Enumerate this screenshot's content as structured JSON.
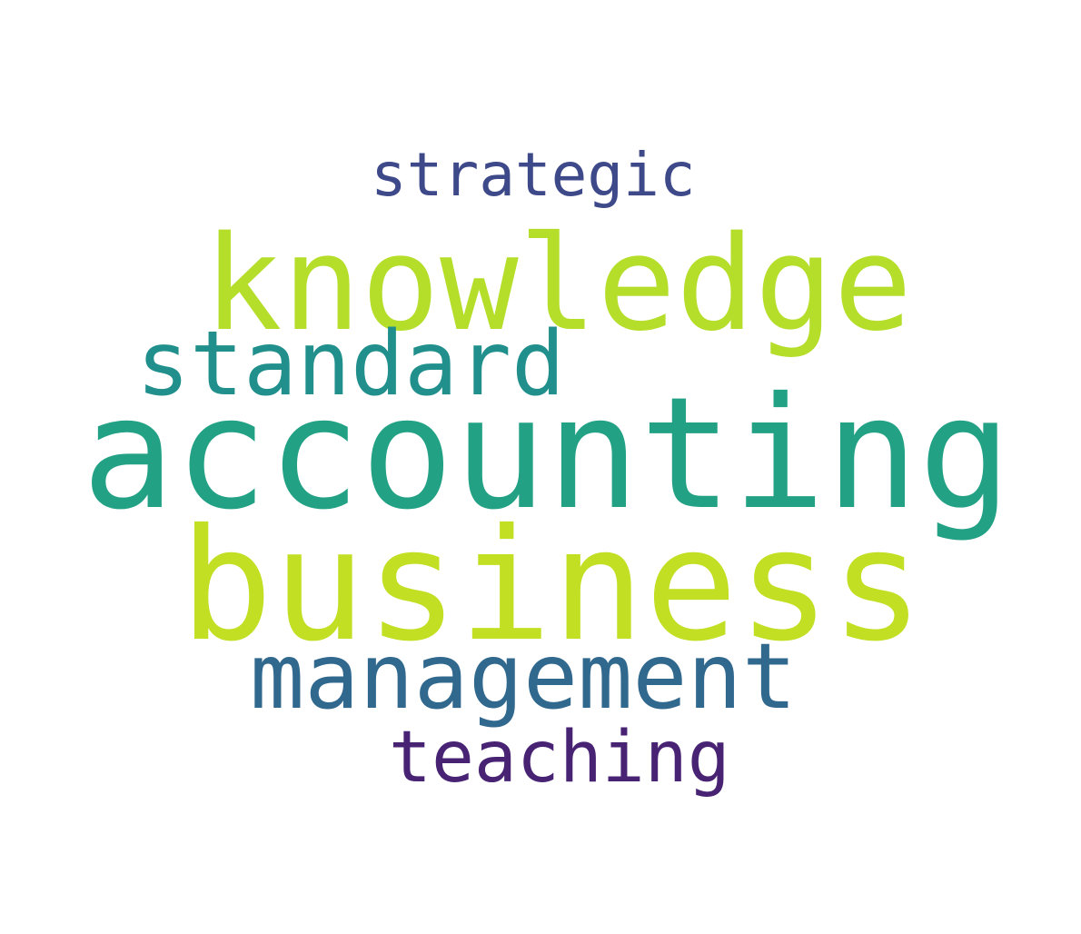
{
  "words": [
    {
      "text": "strategic",
      "color": "#3e4989"
    },
    {
      "text": "knowledge",
      "color": "#b5de2b"
    },
    {
      "text": "standard",
      "color": "#21908d"
    },
    {
      "text": "accounting",
      "color": "#22a185"
    },
    {
      "text": "business",
      "color": "#c2df23"
    },
    {
      "text": "management",
      "color": "#31688e"
    },
    {
      "text": "teaching",
      "color": "#482374"
    }
  ]
}
